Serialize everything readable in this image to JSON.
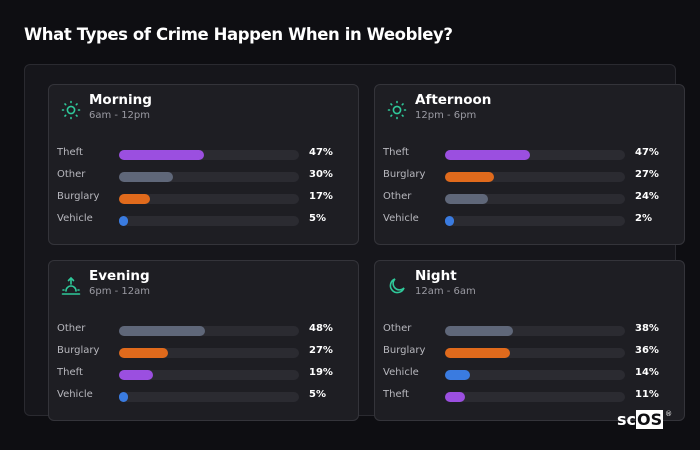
{
  "title": "What Types of Crime Happen When in Weobley?",
  "colors": {
    "theft": "#9b4fe0",
    "other": "#5f6779",
    "burglary": "#e06a1c",
    "vehicle": "#3a7be0",
    "icon": "#2fc99a"
  },
  "cards": [
    {
      "name": "Morning",
      "hours": "6am - 12pm",
      "icon": "sun-icon",
      "rows": [
        {
          "label": "Theft",
          "value": 47,
          "pct": "47%",
          "type": "theft"
        },
        {
          "label": "Other",
          "value": 30,
          "pct": "30%",
          "type": "other"
        },
        {
          "label": "Burglary",
          "value": 17,
          "pct": "17%",
          "type": "burglary"
        },
        {
          "label": "Vehicle",
          "value": 5,
          "pct": "5%",
          "type": "vehicle"
        }
      ]
    },
    {
      "name": "Afternoon",
      "hours": "12pm - 6pm",
      "icon": "sun-icon",
      "rows": [
        {
          "label": "Theft",
          "value": 47,
          "pct": "47%",
          "type": "theft"
        },
        {
          "label": "Burglary",
          "value": 27,
          "pct": "27%",
          "type": "burglary"
        },
        {
          "label": "Other",
          "value": 24,
          "pct": "24%",
          "type": "other"
        },
        {
          "label": "Vehicle",
          "value": 2,
          "pct": "2%",
          "type": "vehicle"
        }
      ]
    },
    {
      "name": "Evening",
      "hours": "6pm - 12am",
      "icon": "sunset-icon",
      "rows": [
        {
          "label": "Other",
          "value": 48,
          "pct": "48%",
          "type": "other"
        },
        {
          "label": "Burglary",
          "value": 27,
          "pct": "27%",
          "type": "burglary"
        },
        {
          "label": "Theft",
          "value": 19,
          "pct": "19%",
          "type": "theft"
        },
        {
          "label": "Vehicle",
          "value": 5,
          "pct": "5%",
          "type": "vehicle"
        }
      ]
    },
    {
      "name": "Night",
      "hours": "12am - 6am",
      "icon": "moon-icon",
      "rows": [
        {
          "label": "Other",
          "value": 38,
          "pct": "38%",
          "type": "other"
        },
        {
          "label": "Burglary",
          "value": 36,
          "pct": "36%",
          "type": "burglary"
        },
        {
          "label": "Vehicle",
          "value": 14,
          "pct": "14%",
          "type": "vehicle"
        },
        {
          "label": "Theft",
          "value": 11,
          "pct": "11%",
          "type": "theft"
        }
      ]
    }
  ],
  "logo": {
    "sc": "sc",
    "os": "OS",
    "reg": "®"
  },
  "chart_data": [
    {
      "type": "bar",
      "title": "Morning (6am - 12pm)",
      "categories": [
        "Theft",
        "Other",
        "Burglary",
        "Vehicle"
      ],
      "values": [
        47,
        30,
        17,
        5
      ],
      "xlim": [
        0,
        100
      ]
    },
    {
      "type": "bar",
      "title": "Afternoon (12pm - 6pm)",
      "categories": [
        "Theft",
        "Burglary",
        "Other",
        "Vehicle"
      ],
      "values": [
        47,
        27,
        24,
        2
      ],
      "xlim": [
        0,
        100
      ]
    },
    {
      "type": "bar",
      "title": "Evening (6pm - 12am)",
      "categories": [
        "Other",
        "Burglary",
        "Theft",
        "Vehicle"
      ],
      "values": [
        48,
        27,
        19,
        5
      ],
      "xlim": [
        0,
        100
      ]
    },
    {
      "type": "bar",
      "title": "Night (12am - 6am)",
      "categories": [
        "Other",
        "Burglary",
        "Vehicle",
        "Theft"
      ],
      "values": [
        38,
        36,
        14,
        11
      ],
      "xlim": [
        0,
        100
      ]
    }
  ]
}
